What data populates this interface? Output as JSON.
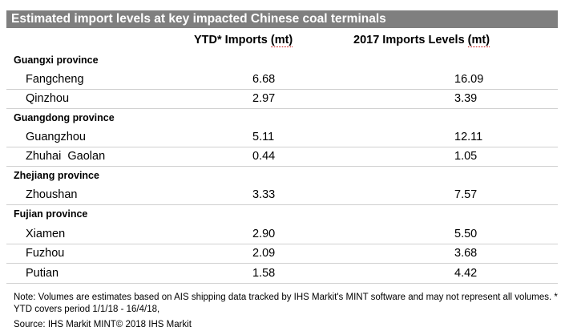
{
  "title": "Estimated import levels at key impacted Chinese coal terminals",
  "columns": {
    "ytd_label": "YTD* Imports",
    "ytd_unit": "(mt)",
    "y2017_label": "2017  Imports Levels",
    "y2017_unit": "(mt)"
  },
  "regions": [
    {
      "name": "Guangxi province",
      "terminals": [
        {
          "name": "Fangcheng",
          "ytd": "6.68",
          "y2017": "16.09"
        },
        {
          "name": "Qinzhou",
          "ytd": "2.97",
          "y2017": "3.39"
        }
      ]
    },
    {
      "name": "Guangdong province",
      "terminals": [
        {
          "name": "Guangzhou",
          "ytd": "5.11",
          "y2017": "12.11"
        },
        {
          "name": "Zhuhai  Gaolan",
          "ytd": "0.44",
          "y2017": "1.05"
        }
      ]
    },
    {
      "name": "Zhejiang province",
      "terminals": [
        {
          "name": "Zhoushan",
          "ytd": "3.33",
          "y2017": "7.57"
        }
      ]
    },
    {
      "name": "Fujian province",
      "terminals": [
        {
          "name": "Xiamen",
          "ytd": "2.90",
          "y2017": "5.50"
        },
        {
          "name": "Fuzhou",
          "ytd": "2.09",
          "y2017": "3.68"
        },
        {
          "name": "Putian",
          "ytd": "1.58",
          "y2017": "4.42"
        }
      ]
    }
  ],
  "note": "Note: Volumes are estimates based on AIS shipping data tracked by IHS Markit's MINT software and may not represent all volumes. * YTD covers period 1/1/18 - 16/4/18,",
  "source": "Source: IHS Markit MINT© 2018 IHS Markit",
  "colors": {
    "title_bg": "#7f7f7f",
    "title_text": "#ffffff",
    "row_rule": "#d0d0d0"
  }
}
